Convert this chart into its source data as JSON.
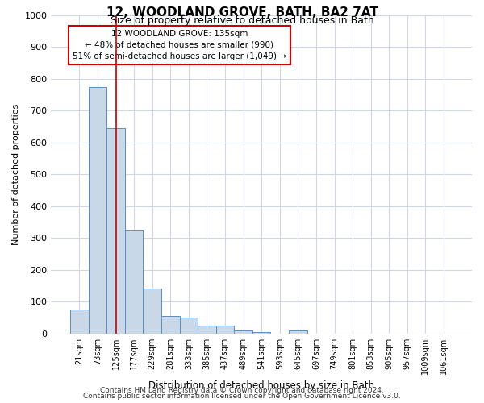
{
  "title": "12, WOODLAND GROVE, BATH, BA2 7AT",
  "subtitle": "Size of property relative to detached houses in Bath",
  "xlabel": "Distribution of detached houses by size in Bath",
  "ylabel": "Number of detached properties",
  "bar_labels": [
    "21sqm",
    "73sqm",
    "125sqm",
    "177sqm",
    "229sqm",
    "281sqm",
    "333sqm",
    "385sqm",
    "437sqm",
    "489sqm",
    "541sqm",
    "593sqm",
    "645sqm",
    "697sqm",
    "749sqm",
    "801sqm",
    "853sqm",
    "905sqm",
    "957sqm",
    "1009sqm",
    "1061sqm"
  ],
  "bar_heights": [
    75,
    775,
    645,
    325,
    140,
    55,
    50,
    25,
    25,
    10,
    5,
    0,
    10,
    0,
    0,
    0,
    0,
    0,
    0,
    0,
    0
  ],
  "bar_color": "#c8d8e8",
  "bar_edge_color": "#5a8fc0",
  "grid_color": "#d0d8e8",
  "vline_x": 2,
  "annotation_text": "12 WOODLAND GROVE: 135sqm\n← 48% of detached houses are smaller (990)\n51% of semi-detached houses are larger (1,049) →",
  "annotation_box_color": "#ffffff",
  "annotation_box_edge": "#cc0000",
  "vline_color": "#cc0000",
  "footer1": "Contains HM Land Registry data © Crown copyright and database right 2024.",
  "footer2": "Contains public sector information licensed under the Open Government Licence v3.0.",
  "ylim": [
    0,
    1000
  ],
  "yticks": [
    0,
    100,
    200,
    300,
    400,
    500,
    600,
    700,
    800,
    900,
    1000
  ]
}
